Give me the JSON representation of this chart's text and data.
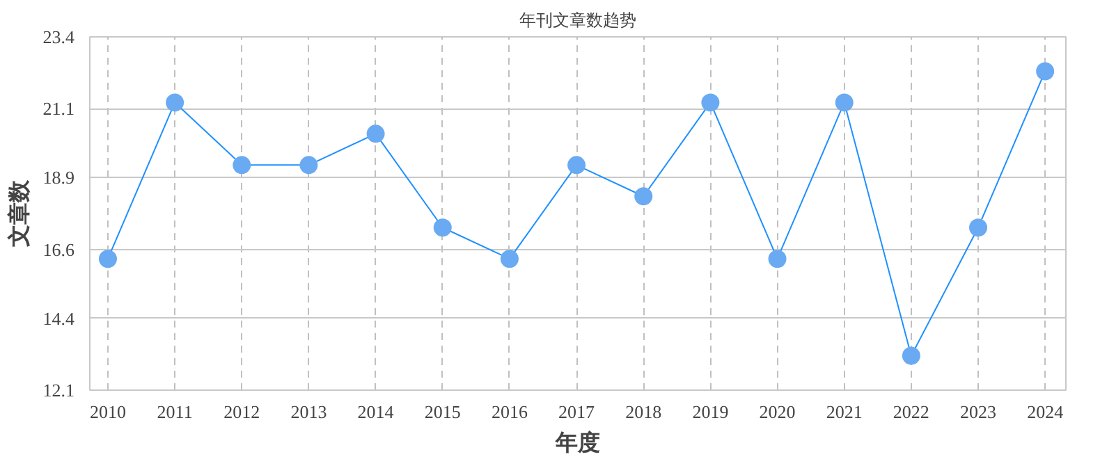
{
  "chart_data": {
    "type": "line",
    "title": "年刊文章数趋势",
    "xlabel": "年度",
    "ylabel": "文章数",
    "categories": [
      "2010",
      "2011",
      "2012",
      "2013",
      "2014",
      "2015",
      "2016",
      "2017",
      "2018",
      "2019",
      "2020",
      "2021",
      "2022",
      "2023",
      "2024"
    ],
    "series": [
      {
        "color": "#1e90ff",
        "values": [
          16.3,
          21.3,
          19.3,
          19.3,
          20.3,
          17.3,
          16.3,
          19.3,
          18.3,
          21.3,
          16.3,
          21.3,
          13.2,
          17.3,
          22.3
        ]
      }
    ],
    "ylim": [
      12.1,
      23.4
    ],
    "yticks": [
      12.1,
      14.4,
      16.6,
      18.9,
      21.1,
      23.4
    ],
    "grid": true,
    "marker": "circle",
    "line_style": "solid"
  }
}
